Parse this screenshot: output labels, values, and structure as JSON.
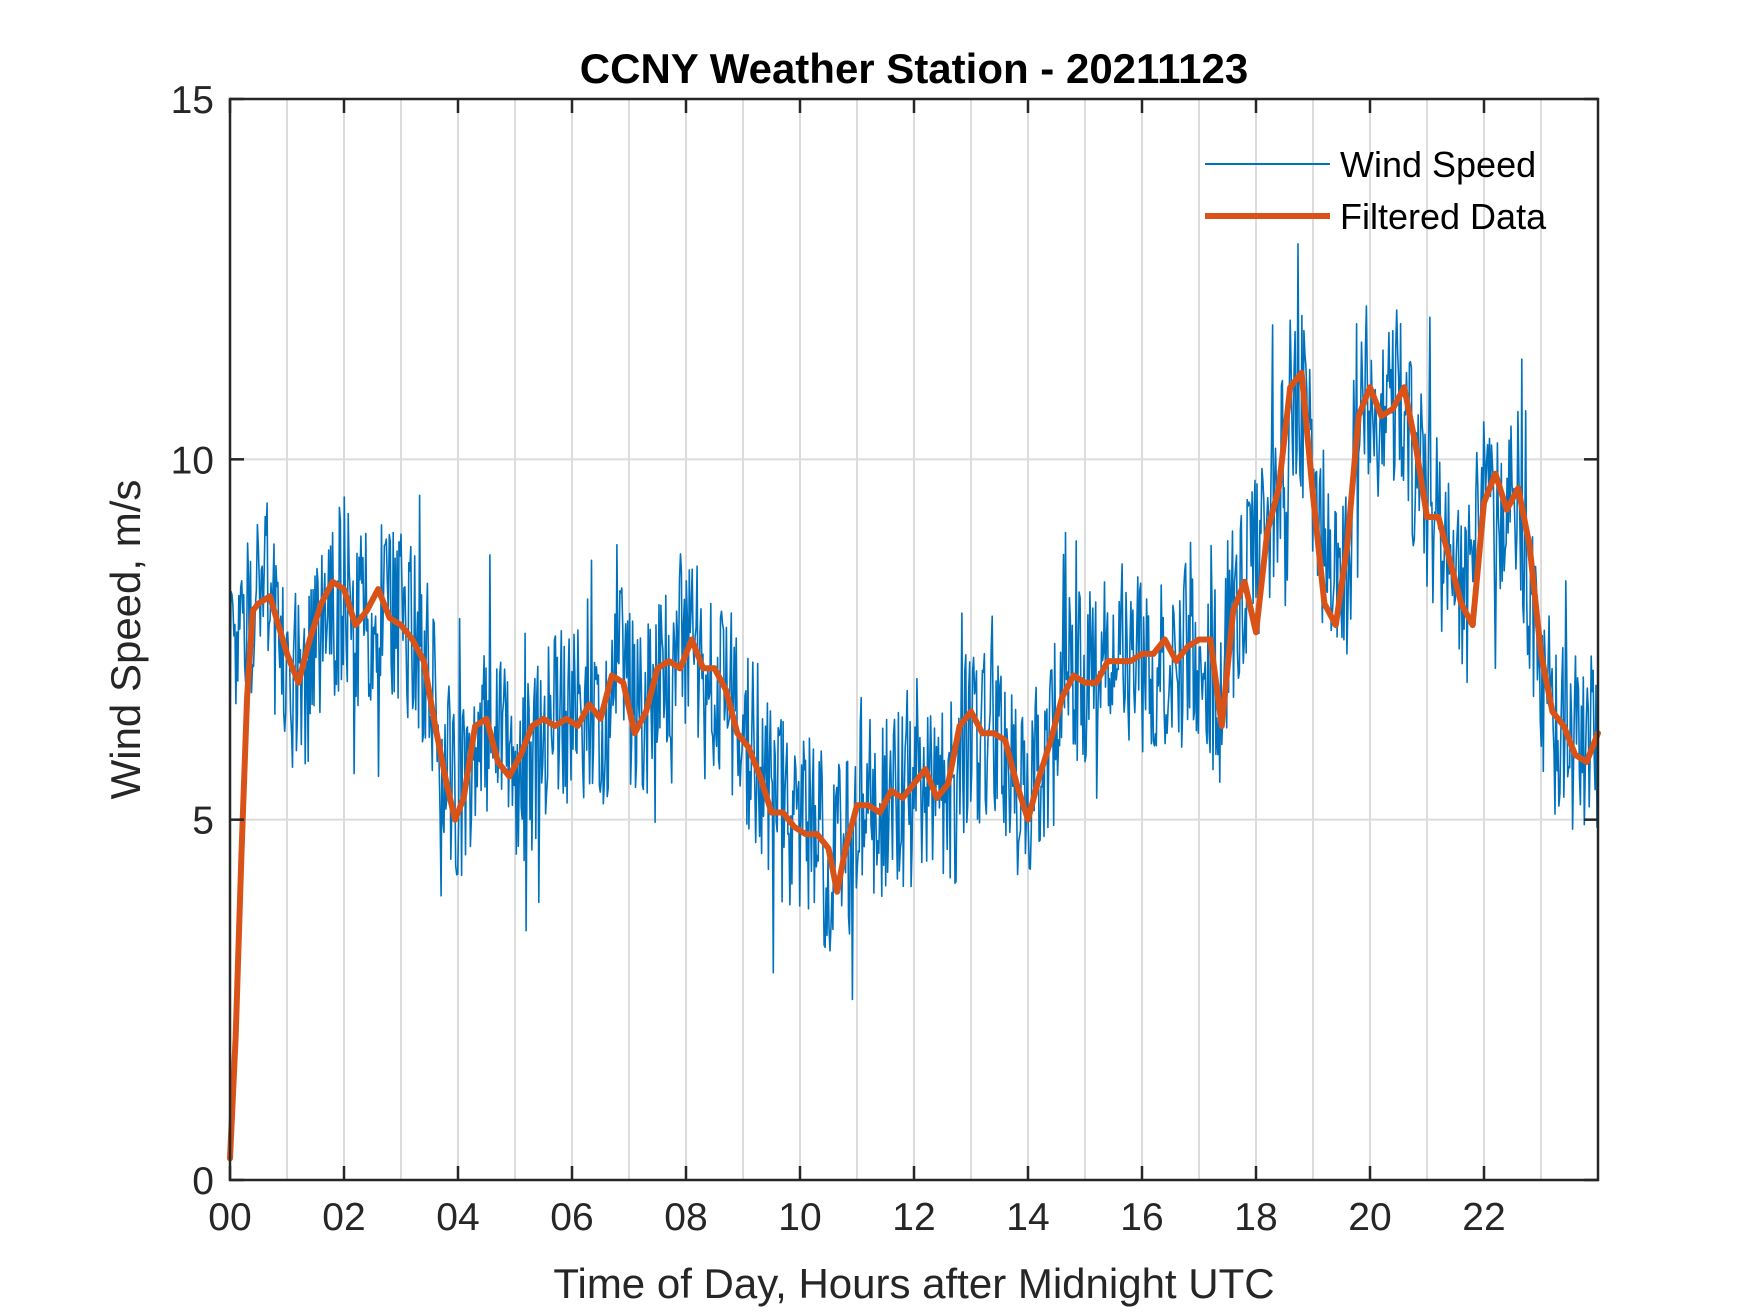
{
  "chart_data": {
    "type": "line",
    "title": "CCNY Weather Station - 20211123",
    "xlabel": "Time of Day, Hours after Midnight UTC",
    "ylabel": "Wind Speed, m/s",
    "xlim": [
      0,
      24
    ],
    "ylim": [
      0,
      15
    ],
    "x_ticks": [
      0,
      2,
      4,
      6,
      8,
      10,
      12,
      14,
      16,
      18,
      20,
      22
    ],
    "x_tick_labels": [
      "00",
      "02",
      "04",
      "06",
      "08",
      "10",
      "12",
      "14",
      "16",
      "18",
      "20",
      "22"
    ],
    "x_minor_gridlines": [
      1,
      3,
      5,
      7,
      9,
      11,
      13,
      15,
      17,
      19,
      21,
      23
    ],
    "y_ticks": [
      0,
      5,
      10,
      15
    ],
    "y_tick_labels": [
      "0",
      "5",
      "10",
      "15"
    ],
    "grid": true,
    "legend_position": "top-right",
    "series": [
      {
        "name": "Wind Speed",
        "color": "#0072BD",
        "style": "noisy-raw",
        "noise_amplitude": 1.3,
        "x": [
          0,
          0.3,
          0.6,
          1.0,
          1.3,
          1.7,
          2.0,
          2.3,
          2.6,
          3.0,
          3.3,
          3.6,
          3.9,
          4.2,
          4.5,
          4.8,
          5.1,
          5.4,
          5.7,
          6.0,
          6.3,
          6.6,
          6.9,
          7.2,
          7.6,
          8.0,
          8.3,
          8.6,
          9.0,
          9.3,
          9.6,
          10.0,
          10.3,
          10.6,
          10.9,
          11.2,
          11.5,
          11.8,
          12.1,
          12.4,
          12.7,
          13.0,
          13.3,
          13.6,
          13.9,
          14.2,
          14.5,
          14.8,
          15.1,
          15.4,
          15.7,
          16.0,
          16.3,
          16.6,
          16.9,
          17.2,
          17.5,
          17.8,
          18.1,
          18.4,
          18.7,
          19.0,
          19.3,
          19.6,
          19.9,
          20.2,
          20.5,
          20.8,
          21.1,
          21.4,
          21.7,
          22.0,
          22.3,
          22.6,
          22.9,
          23.2,
          23.5,
          23.8,
          24.0
        ],
        "values": [
          7.0,
          7.8,
          8.1,
          7.0,
          6.9,
          7.7,
          8.2,
          7.7,
          8.1,
          7.7,
          7.6,
          6.7,
          5.3,
          5.4,
          6.4,
          5.8,
          5.6,
          6.0,
          6.4,
          6.4,
          6.4,
          6.5,
          7.0,
          6.3,
          7.1,
          7.5,
          7.1,
          7.0,
          6.3,
          5.8,
          5.2,
          4.9,
          4.8,
          4.2,
          4.9,
          5.2,
          5.1,
          5.3,
          5.4,
          5.5,
          5.3,
          6.3,
          6.2,
          5.9,
          5.2,
          5.8,
          6.3,
          7.0,
          6.9,
          7.1,
          7.3,
          7.3,
          7.3,
          7.3,
          7.3,
          6.8,
          7.6,
          8.1,
          8.7,
          9.7,
          11.1,
          10.0,
          8.2,
          8.5,
          10.9,
          10.7,
          10.8,
          9.9,
          9.3,
          8.4,
          8.0,
          9.7,
          9.3,
          9.4,
          7.8,
          6.4,
          6.1,
          5.9,
          6.2
        ]
      },
      {
        "name": "Filtered Data",
        "color": "#D95319",
        "style": "thick",
        "x": [
          0,
          0.1,
          0.2,
          0.3,
          0.4,
          0.5,
          0.7,
          1.0,
          1.2,
          1.4,
          1.6,
          1.8,
          2.0,
          2.2,
          2.4,
          2.6,
          2.8,
          3.0,
          3.2,
          3.4,
          3.6,
          3.8,
          3.95,
          4.1,
          4.3,
          4.5,
          4.7,
          4.9,
          5.1,
          5.3,
          5.5,
          5.7,
          5.9,
          6.1,
          6.3,
          6.5,
          6.7,
          6.9,
          7.1,
          7.3,
          7.5,
          7.7,
          7.9,
          8.1,
          8.3,
          8.5,
          8.7,
          8.9,
          9.1,
          9.3,
          9.5,
          9.7,
          9.9,
          10.1,
          10.3,
          10.5,
          10.65,
          10.8,
          11.0,
          11.2,
          11.4,
          11.6,
          11.8,
          12.0,
          12.2,
          12.4,
          12.6,
          12.8,
          13.0,
          13.2,
          13.4,
          13.6,
          13.8,
          14.0,
          14.2,
          14.4,
          14.6,
          14.8,
          15.0,
          15.2,
          15.4,
          15.6,
          15.8,
          16.0,
          16.2,
          16.4,
          16.6,
          16.8,
          17.0,
          17.2,
          17.4,
          17.6,
          17.8,
          18.0,
          18.2,
          18.4,
          18.6,
          18.8,
          19.0,
          19.2,
          19.4,
          19.6,
          19.8,
          20.0,
          20.2,
          20.4,
          20.6,
          20.8,
          21.0,
          21.2,
          21.4,
          21.6,
          21.8,
          22.0,
          22.2,
          22.4,
          22.6,
          22.8,
          23.0,
          23.2,
          23.4,
          23.6,
          23.8,
          24.0
        ],
        "values": [
          0.3,
          2.0,
          4.5,
          6.7,
          7.9,
          8.0,
          8.1,
          7.3,
          6.9,
          7.5,
          8.0,
          8.3,
          8.2,
          7.7,
          7.9,
          8.2,
          7.8,
          7.7,
          7.5,
          7.2,
          6.3,
          5.5,
          5.0,
          5.3,
          6.3,
          6.4,
          5.8,
          5.6,
          5.9,
          6.3,
          6.4,
          6.3,
          6.4,
          6.3,
          6.6,
          6.4,
          7.0,
          6.9,
          6.2,
          6.5,
          7.1,
          7.2,
          7.1,
          7.5,
          7.1,
          7.1,
          6.8,
          6.2,
          6.0,
          5.6,
          5.1,
          5.1,
          4.9,
          4.8,
          4.8,
          4.6,
          4.0,
          4.6,
          5.2,
          5.2,
          5.1,
          5.4,
          5.3,
          5.5,
          5.7,
          5.3,
          5.5,
          6.3,
          6.5,
          6.2,
          6.2,
          6.1,
          5.5,
          5.0,
          5.6,
          6.1,
          6.7,
          7.0,
          6.9,
          6.9,
          7.2,
          7.2,
          7.2,
          7.3,
          7.3,
          7.5,
          7.2,
          7.4,
          7.5,
          7.5,
          6.3,
          7.9,
          8.3,
          7.6,
          9.0,
          9.6,
          11.0,
          11.2,
          9.5,
          8.0,
          7.7,
          8.8,
          10.6,
          11.0,
          10.6,
          10.7,
          11.0,
          10.2,
          9.2,
          9.2,
          8.6,
          8.0,
          7.7,
          9.4,
          9.8,
          9.3,
          9.6,
          8.8,
          7.3,
          6.5,
          6.3,
          5.9,
          5.8,
          6.2
        ]
      }
    ]
  }
}
